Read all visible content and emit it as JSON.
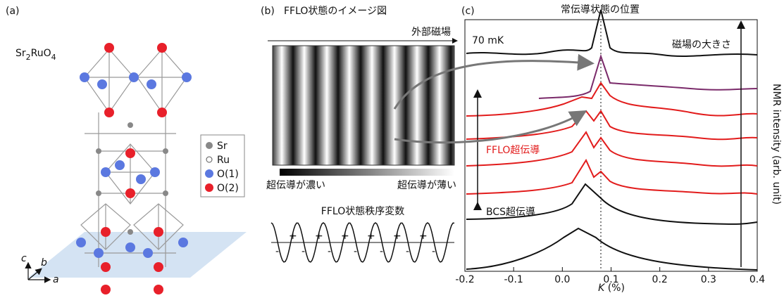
{
  "panel_a": {
    "label": "(a)",
    "formula": {
      "part1": "Sr",
      "sub1": "2",
      "part2": "RuO",
      "sub2": "4"
    },
    "legend": [
      "Sr",
      "Ru",
      "O(1)",
      "O(2)"
    ],
    "axes": {
      "c": "c",
      "b": "b",
      "a": "a"
    }
  },
  "panel_b": {
    "label": "(b)",
    "title": "FFLO状態のイメージ図",
    "field": "外部磁場",
    "dense": "超伝導が濃い",
    "thin": "超伝導が薄い",
    "order_title": "FFLO状態秩序変数",
    "plus": "+",
    "minus": "-"
  },
  "panel_c": {
    "label": "(c)",
    "top_note": "常伝導状態の位置",
    "temperature": "70 mK",
    "field_size": "磁場の大きさ",
    "fflo": "FFLO超伝導",
    "bcs": "BCS超伝導",
    "ylabel": "NMR intensity (arb. unit)",
    "xlabel": {
      "symbol": "K",
      "unit": " (%)"
    },
    "xlim": [
      -0.2,
      0.4
    ],
    "xticks": [
      -0.2,
      -0.1,
      {
        "value": 0,
        "label": "0.0"
      },
      0.1,
      0.2,
      0.3,
      0.4
    ]
  }
}
